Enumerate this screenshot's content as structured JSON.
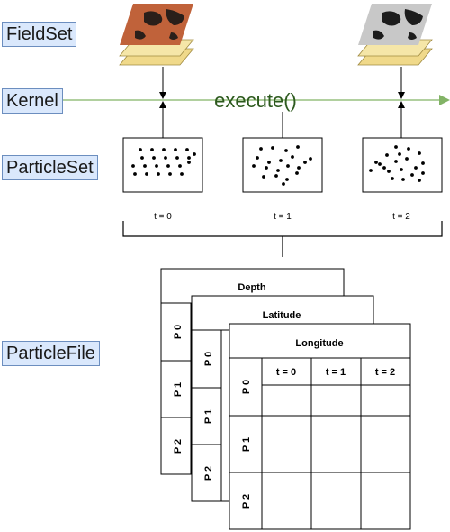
{
  "labels": {
    "fieldset": "FieldSet",
    "kernel": "Kernel",
    "particleset": "ParticleSet",
    "particlefile": "ParticleFile"
  },
  "kernel_call": "execute()",
  "time_labels": [
    "t = 0",
    "t = 1",
    "t = 2"
  ],
  "table": {
    "sheets": [
      "Depth",
      "Latitude",
      "Longitude"
    ],
    "rows": [
      "P 0",
      "P 1",
      "P 2"
    ],
    "columns": [
      "t = 0",
      "t = 1",
      "t = 2"
    ]
  },
  "colors": {
    "label_fill": "#dae8fc",
    "label_border": "#6c8ebf",
    "kernel_line": "#82b366",
    "kernel_text": "#2d5a1e",
    "map_warm": "#c0623a",
    "map_grey": "#b8b8b8",
    "layer_yellow": "#f5e6a8"
  },
  "icons": {
    "fieldset_map_t0": "map-layers-icon",
    "fieldset_map_t2": "map-layers-icon"
  }
}
